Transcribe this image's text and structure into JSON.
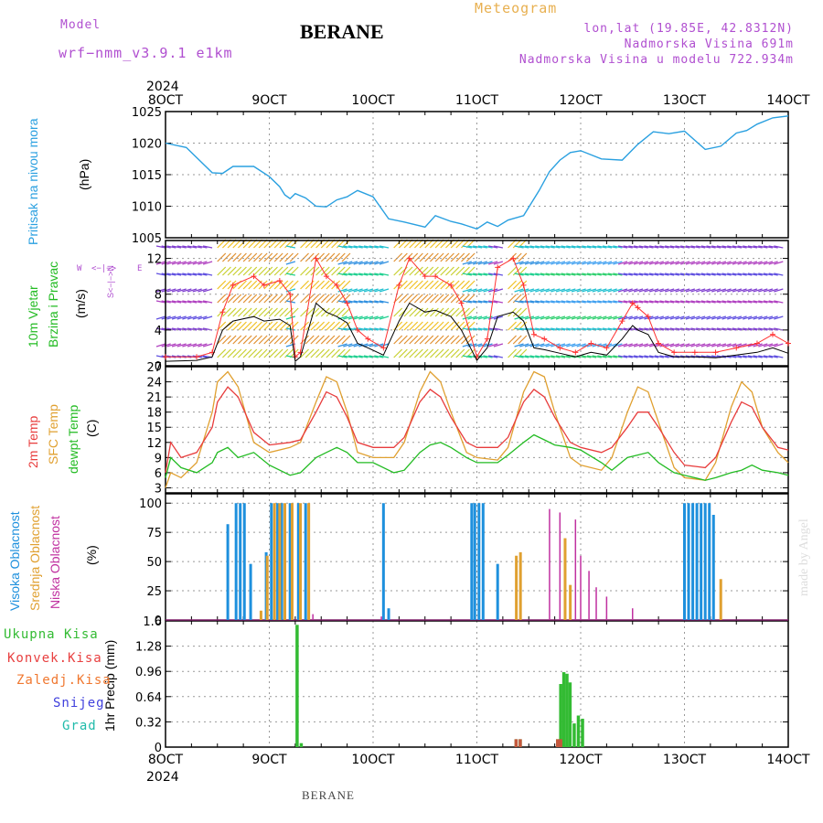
{
  "header": {
    "model_label": "Model",
    "model_name": "wrf−nmm_v3.9.1  e1km",
    "station": "BERANE",
    "meteogram": "Meteogram",
    "lonlat": "lon,lat (19.85E, 42.8312N)",
    "elevation": "Nadmorska Visina 691m",
    "model_elevation": "Nadmorska Visina u modelu 722.934m"
  },
  "footer": {
    "station": "BERANE",
    "credit": "made by Angel"
  },
  "colors": {
    "pressure": "#2aa0e0",
    "temp2m": "#e83c3c",
    "sfc": "#e0a030",
    "dewpt": "#22bb22",
    "high_cloud": "#1e90dd",
    "mid_cloud": "#e0a030",
    "low_cloud": "#c030a0",
    "precip": "#33bb33",
    "conv": "#e84040",
    "frozen": "#f07830",
    "snow": "#4040dd",
    "hail": "#20bbaa",
    "wind_speed": "#000000",
    "gust": "#ff3030"
  },
  "time_axis": {
    "labels": [
      "8OCT",
      "9OCT",
      "10OCT",
      "11OCT",
      "12OCT",
      "13OCT",
      "14OCT"
    ],
    "year": "2024",
    "start_day": 8,
    "end_day": 14
  },
  "panels": {
    "pressure": {
      "ylabel_main": "Pritisak na nivou mora",
      "unit": "(hPa)",
      "ticks": [
        "1005",
        "1010",
        "1015",
        "1020",
        "1025"
      ]
    },
    "wind": {
      "ylabel_main": "10m Vjetar",
      "ylabel_sub": "Brzina i Pravac",
      "unit": "(m/s)",
      "ticks": [
        "0",
        "4",
        "8",
        "12"
      ],
      "compass": {
        "w": "W",
        "arrow_we": "<−|−>",
        "e": "E",
        "arrow_sn": "S<−|−>N"
      }
    },
    "temperature": {
      "label_2m": "2m Temp",
      "label_sfc": "SFC Temp",
      "label_dew": "dewpt Temp",
      "unit": "(C)",
      "ticks": [
        "3",
        "6",
        "9",
        "12",
        "15",
        "18",
        "21",
        "24",
        "27"
      ]
    },
    "cloud": {
      "label_high": "Visoka Oblacnost",
      "label_mid": "Srednja Oblacnost",
      "label_low": "Niska Oblacnost",
      "unit": "(%)",
      "ticks": [
        "0",
        "25",
        "50",
        "75",
        "100"
      ]
    },
    "precip": {
      "unit_label": "1hr Precip (mm)",
      "ticks": [
        "0",
        "0.32",
        "0.64",
        "0.96",
        "1.28",
        "1.6"
      ],
      "legend": {
        "total": "Ukupna Kisa",
        "conv": "Konvek.Kisa",
        "frozen": "Zaledj.Kisa",
        "snow": "Snijeg",
        "hail": "Grad"
      }
    }
  },
  "chart_data": [
    {
      "type": "line",
      "title": "",
      "ylabel": "Pritisak na nivou mora (hPa)",
      "ylim": [
        1005,
        1025
      ],
      "grid": true,
      "x_unit": "day of October 2024",
      "series": [
        {
          "name": "",
          "x": [
            8.0,
            8.2,
            8.45,
            8.55,
            8.65,
            8.85,
            9.0,
            9.1,
            9.15,
            9.2,
            9.25,
            9.35,
            9.45,
            9.55,
            9.65,
            9.75,
            9.85,
            10.0,
            10.15,
            10.3,
            10.5,
            10.6,
            10.75,
            10.85,
            11.0,
            11.1,
            11.2,
            11.3,
            11.45,
            11.6,
            11.7,
            11.8,
            11.9,
            12.0,
            12.2,
            12.4,
            12.55,
            12.7,
            12.85,
            13.0,
            13.2,
            13.35,
            13.5,
            13.6,
            13.7,
            13.85,
            14.0
          ],
          "values": [
            1020.0,
            1019.3,
            1015.3,
            1015.2,
            1016.3,
            1016.3,
            1014.7,
            1013.1,
            1011.8,
            1011.2,
            1012.0,
            1011.3,
            1010.0,
            1009.9,
            1011.0,
            1011.5,
            1012.5,
            1011.5,
            1008.0,
            1007.5,
            1006.7,
            1008.5,
            1007.6,
            1007.2,
            1006.4,
            1007.5,
            1006.8,
            1007.8,
            1008.5,
            1012.5,
            1015.5,
            1017.3,
            1018.5,
            1018.8,
            1017.5,
            1017.3,
            1019.8,
            1021.8,
            1021.5,
            1021.9,
            1019.0,
            1019.5,
            1021.6,
            1022.0,
            1023.0,
            1024.0,
            1024.3
          ]
        }
      ]
    },
    {
      "type": "line",
      "title": "",
      "ylabel": "10m Vjetar Brzina i Pravac (m/s)",
      "ylim": [
        0,
        14
      ],
      "grid": true,
      "x_unit": "day of October 2024",
      "series": [
        {
          "name": "speed",
          "x": [
            8.0,
            8.3,
            8.45,
            8.55,
            8.65,
            8.85,
            8.95,
            9.1,
            9.2,
            9.25,
            9.3,
            9.45,
            9.55,
            9.65,
            9.75,
            9.85,
            9.95,
            10.1,
            10.25,
            10.35,
            10.5,
            10.6,
            10.75,
            10.85,
            11.0,
            11.1,
            11.2,
            11.35,
            11.45,
            11.55,
            11.65,
            11.8,
            11.95,
            12.1,
            12.25,
            12.4,
            12.5,
            12.55,
            12.65,
            12.75,
            12.9,
            13.1,
            13.3,
            13.5,
            13.7,
            13.85,
            14.0
          ],
          "values": [
            0.5,
            0.6,
            1.0,
            4.0,
            5.0,
            5.5,
            5.0,
            5.2,
            4.5,
            0.5,
            1.0,
            7.0,
            6.0,
            5.5,
            4.8,
            2.5,
            2.0,
            1.2,
            5.0,
            7.0,
            6.0,
            6.2,
            5.5,
            4.0,
            0.6,
            2.0,
            5.5,
            6.0,
            5.0,
            2.0,
            1.8,
            1.4,
            1.0,
            1.5,
            1.2,
            3.0,
            4.5,
            4.0,
            3.5,
            1.5,
            1.0,
            1.0,
            0.9,
            1.2,
            1.5,
            2.0,
            1.4
          ]
        },
        {
          "name": "gust",
          "x": [
            8.0,
            8.3,
            8.45,
            8.55,
            8.65,
            8.85,
            8.95,
            9.1,
            9.2,
            9.25,
            9.3,
            9.45,
            9.55,
            9.65,
            9.75,
            9.85,
            9.95,
            10.1,
            10.25,
            10.35,
            10.5,
            10.6,
            10.75,
            10.85,
            11.0,
            11.1,
            11.2,
            11.35,
            11.45,
            11.55,
            11.65,
            11.8,
            11.95,
            12.1,
            12.25,
            12.4,
            12.5,
            12.55,
            12.65,
            12.75,
            12.9,
            13.1,
            13.3,
            13.5,
            13.7,
            13.85,
            14.0
          ],
          "values": [
            1.0,
            1.0,
            1.5,
            6.0,
            9.0,
            10.0,
            9.0,
            9.5,
            8.0,
            1.0,
            1.5,
            12.0,
            10.0,
            9.0,
            7.0,
            4.0,
            3.0,
            2.0,
            9.0,
            12.0,
            10.0,
            10.0,
            9.0,
            7.0,
            1.0,
            3.0,
            11.0,
            12.0,
            9.0,
            3.5,
            3.0,
            2.0,
            1.5,
            2.5,
            2.0,
            5.0,
            7.0,
            6.5,
            5.5,
            2.5,
            1.5,
            1.5,
            1.5,
            2.0,
            2.5,
            3.5,
            2.5
          ]
        }
      ]
    },
    {
      "type": "line",
      "title": "",
      "ylabel": "(C)",
      "ylim": [
        2,
        27
      ],
      "grid": true,
      "x_unit": "day of October 2024",
      "series": [
        {
          "name": "2m Temp",
          "x": [
            8.0,
            8.05,
            8.15,
            8.3,
            8.45,
            8.5,
            8.6,
            8.7,
            8.85,
            9.0,
            9.2,
            9.3,
            9.45,
            9.55,
            9.65,
            9.75,
            9.85,
            10.0,
            10.2,
            10.3,
            10.45,
            10.55,
            10.65,
            10.75,
            10.9,
            11.0,
            11.2,
            11.3,
            11.45,
            11.55,
            11.65,
            11.75,
            11.9,
            12.0,
            12.2,
            12.3,
            12.45,
            12.55,
            12.65,
            12.75,
            12.9,
            13.0,
            13.2,
            13.3,
            13.45,
            13.55,
            13.65,
            13.75,
            13.9,
            14.0
          ],
          "values": [
            6.0,
            12.0,
            9.0,
            10.0,
            15.0,
            20.0,
            23.0,
            21.0,
            14.0,
            11.5,
            12.0,
            12.5,
            18.0,
            22.0,
            21.0,
            17.0,
            12.0,
            11.0,
            11.0,
            13.0,
            20.0,
            22.5,
            21.0,
            17.0,
            12.0,
            11.0,
            11.0,
            13.0,
            20.0,
            22.5,
            21.0,
            17.0,
            12.0,
            11.0,
            10.0,
            11.0,
            15.0,
            18.0,
            18.0,
            15.0,
            10.0,
            7.5,
            7.0,
            9.0,
            16.0,
            20.0,
            19.0,
            15.0,
            11.0,
            10.5
          ]
        },
        {
          "name": "SFC Temp",
          "x": [
            8.0,
            8.05,
            8.15,
            8.3,
            8.45,
            8.5,
            8.6,
            8.7,
            8.85,
            9.0,
            9.2,
            9.3,
            9.45,
            9.55,
            9.65,
            9.75,
            9.85,
            10.0,
            10.2,
            10.3,
            10.45,
            10.55,
            10.65,
            10.75,
            10.9,
            11.0,
            11.2,
            11.3,
            11.45,
            11.55,
            11.65,
            11.75,
            11.9,
            12.0,
            12.2,
            12.3,
            12.45,
            12.55,
            12.65,
            12.75,
            12.9,
            13.0,
            13.2,
            13.3,
            13.45,
            13.55,
            13.65,
            13.75,
            13.9,
            14.0
          ],
          "values": [
            3.0,
            6.0,
            5.0,
            8.0,
            18.0,
            24.0,
            26.0,
            23.0,
            12.0,
            10.0,
            11.0,
            12.0,
            20.0,
            25.0,
            24.0,
            18.0,
            10.0,
            9.0,
            9.0,
            12.0,
            22.0,
            26.0,
            24.0,
            18.0,
            10.0,
            9.0,
            8.5,
            11.0,
            22.0,
            26.0,
            25.0,
            18.0,
            9.0,
            7.5,
            6.5,
            9.0,
            18.0,
            23.0,
            22.0,
            16.0,
            7.0,
            5.0,
            4.5,
            8.0,
            19.0,
            24.0,
            22.0,
            15.0,
            10.0,
            8.0
          ]
        },
        {
          "name": "dewpt Temp",
          "x": [
            8.0,
            8.05,
            8.15,
            8.3,
            8.45,
            8.5,
            8.6,
            8.7,
            8.85,
            9.0,
            9.2,
            9.3,
            9.45,
            9.55,
            9.65,
            9.75,
            9.85,
            10.0,
            10.2,
            10.3,
            10.45,
            10.55,
            10.65,
            10.75,
            10.9,
            11.0,
            11.2,
            11.3,
            11.45,
            11.55,
            11.65,
            11.75,
            11.9,
            12.0,
            12.2,
            12.3,
            12.45,
            12.55,
            12.65,
            12.75,
            12.9,
            13.0,
            13.2,
            13.3,
            13.45,
            13.55,
            13.65,
            13.75,
            13.9,
            14.0
          ],
          "values": [
            5.0,
            9.0,
            7.0,
            6.0,
            8.0,
            10.0,
            11.0,
            9.0,
            10.0,
            7.5,
            5.5,
            6.0,
            9.0,
            10.0,
            11.0,
            10.0,
            8.0,
            8.0,
            6.0,
            6.5,
            10.0,
            11.5,
            12.0,
            11.0,
            9.0,
            8.0,
            8.0,
            9.5,
            12.0,
            13.5,
            12.5,
            11.5,
            11.0,
            10.5,
            8.0,
            6.5,
            9.0,
            9.5,
            10.0,
            8.0,
            6.0,
            5.5,
            4.5,
            5.0,
            6.0,
            6.5,
            7.5,
            6.5,
            6.0,
            5.5
          ]
        }
      ]
    },
    {
      "type": "bar",
      "title": "",
      "ylabel": "(%)",
      "ylim": [
        0,
        100
      ],
      "grid": true,
      "x_unit": "day of October 2024",
      "series": [
        {
          "name": "Visoka Oblacnost",
          "x": [
            8.6,
            8.68,
            8.72,
            8.76,
            8.82,
            8.97,
            9.02,
            9.08,
            9.12,
            9.2,
            9.28,
            9.35,
            10.1,
            10.15,
            10.95,
            10.98,
            11.02,
            11.06,
            11.2,
            13.0,
            13.04,
            13.08,
            13.12,
            13.16,
            13.2,
            13.24,
            13.28
          ],
          "values": [
            82,
            100,
            100,
            100,
            48,
            58,
            100,
            100,
            100,
            100,
            100,
            100,
            100,
            10,
            100,
            100,
            100,
            100,
            48,
            100,
            100,
            100,
            100,
            100,
            100,
            100,
            90
          ]
        },
        {
          "name": "Srednja Oblacnost",
          "x": [
            8.92,
            8.98,
            9.05,
            9.1,
            9.15,
            9.22,
            9.3,
            9.38,
            11.38,
            11.42,
            11.85,
            11.9,
            13.35
          ],
          "values": [
            8,
            55,
            100,
            100,
            100,
            100,
            100,
            100,
            55,
            58,
            70,
            30,
            35
          ]
        },
        {
          "name": "Niska Oblacnost",
          "x": [
            9.42,
            10.08,
            11.7,
            11.8,
            11.95,
            12.0,
            12.08,
            12.15,
            12.25,
            12.5
          ],
          "values": [
            5,
            3,
            95,
            92,
            86,
            55,
            42,
            28,
            20,
            10
          ]
        }
      ]
    },
    {
      "type": "bar",
      "title": "",
      "ylabel": "1hr Precip (mm)",
      "ylim": [
        0,
        1.6
      ],
      "grid": true,
      "x_unit": "day of October 2024",
      "series": [
        {
          "name": "Ukupna Kisa",
          "x": [
            9.27,
            9.31,
            11.38,
            11.42,
            11.78,
            11.81,
            11.84,
            11.87,
            11.9,
            11.94,
            11.98,
            12.02
          ],
          "values": [
            1.55,
            0.05,
            0.1,
            0.1,
            0.1,
            0.8,
            0.95,
            0.93,
            0.82,
            0.3,
            0.4,
            0.36
          ]
        },
        {
          "name": "Konvek.Kisa",
          "x": [
            11.38,
            11.42,
            11.78,
            11.81
          ],
          "values": [
            0.1,
            0.1,
            0.1,
            0.1
          ]
        }
      ]
    }
  ]
}
